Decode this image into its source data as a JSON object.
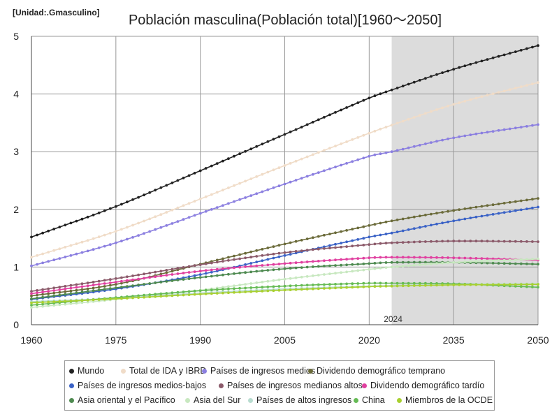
{
  "chart_data": {
    "type": "line",
    "title": "Población masculina(Población total)[1960～2050]",
    "unit_label": "[Unidad:.Gmasculino]",
    "xlabel": "",
    "ylabel": "",
    "xlim": [
      1960,
      2050
    ],
    "ylim": [
      0,
      5
    ],
    "x_ticks": [
      "1960",
      "1975",
      "1990",
      "2005",
      "2020",
      "2035",
      "2050"
    ],
    "y_ticks": [
      "0",
      "1",
      "2",
      "3",
      "4",
      "5"
    ],
    "shade_start": 2024,
    "shade_end": 2050,
    "shade_label": "2024",
    "anchors_x": [
      1960,
      1975,
      1990,
      2005,
      2020,
      2024,
      2035,
      2050
    ],
    "series": [
      {
        "name": "Mundo",
        "color": "#222222",
        "anchors": [
          1.52,
          2.05,
          2.67,
          3.3,
          3.93,
          4.07,
          4.43,
          4.84
        ]
      },
      {
        "name": "Total de IDA y IBRD",
        "color": "#f0dcc8",
        "anchors": [
          1.17,
          1.62,
          2.18,
          2.76,
          3.32,
          3.46,
          3.82,
          4.2
        ]
      },
      {
        "name": "Países de ingresos medios",
        "color": "#8b7fe0",
        "anchors": [
          1.02,
          1.42,
          1.93,
          2.44,
          2.92,
          3.0,
          3.24,
          3.47
        ]
      },
      {
        "name": "Dividendo demográfico temprano",
        "color": "#6b6b3a",
        "anchors": [
          0.5,
          0.7,
          1.05,
          1.4,
          1.72,
          1.8,
          1.98,
          2.19
        ]
      },
      {
        "name": "Países de ingresos medios-bajos",
        "color": "#3a62c6",
        "anchors": [
          0.44,
          0.62,
          0.87,
          1.2,
          1.52,
          1.59,
          1.8,
          2.04
        ]
      },
      {
        "name": "Países de ingresos medianos altos",
        "color": "#8b5a6a",
        "anchors": [
          0.58,
          0.8,
          1.04,
          1.25,
          1.39,
          1.42,
          1.45,
          1.44
        ]
      },
      {
        "name": "Dividendo demográfico tardío",
        "color": "#e040a0",
        "anchors": [
          0.54,
          0.74,
          0.93,
          1.06,
          1.16,
          1.17,
          1.16,
          1.12
        ]
      },
      {
        "name": "Asia oriental y el Pacífico",
        "color": "#4e8a50",
        "anchors": [
          0.45,
          0.64,
          0.82,
          0.97,
          1.06,
          1.08,
          1.08,
          1.05
        ]
      },
      {
        "name": "Asia del Sur",
        "color": "#c8e8c0",
        "anchors": [
          0.3,
          0.44,
          0.6,
          0.79,
          0.96,
          1.0,
          1.08,
          1.14
        ]
      },
      {
        "name": "Países de altos ingresos",
        "color": "#b8dcd0",
        "anchors": [
          0.4,
          0.46,
          0.55,
          0.62,
          0.67,
          0.68,
          0.7,
          0.71
        ]
      },
      {
        "name": "China",
        "color": "#66bb55",
        "anchors": [
          0.34,
          0.47,
          0.59,
          0.67,
          0.72,
          0.72,
          0.71,
          0.65
        ]
      },
      {
        "name": "Miembros de la OCDE",
        "color": "#a8d030",
        "anchors": [
          0.38,
          0.45,
          0.53,
          0.6,
          0.66,
          0.67,
          0.69,
          0.7
        ]
      }
    ]
  }
}
